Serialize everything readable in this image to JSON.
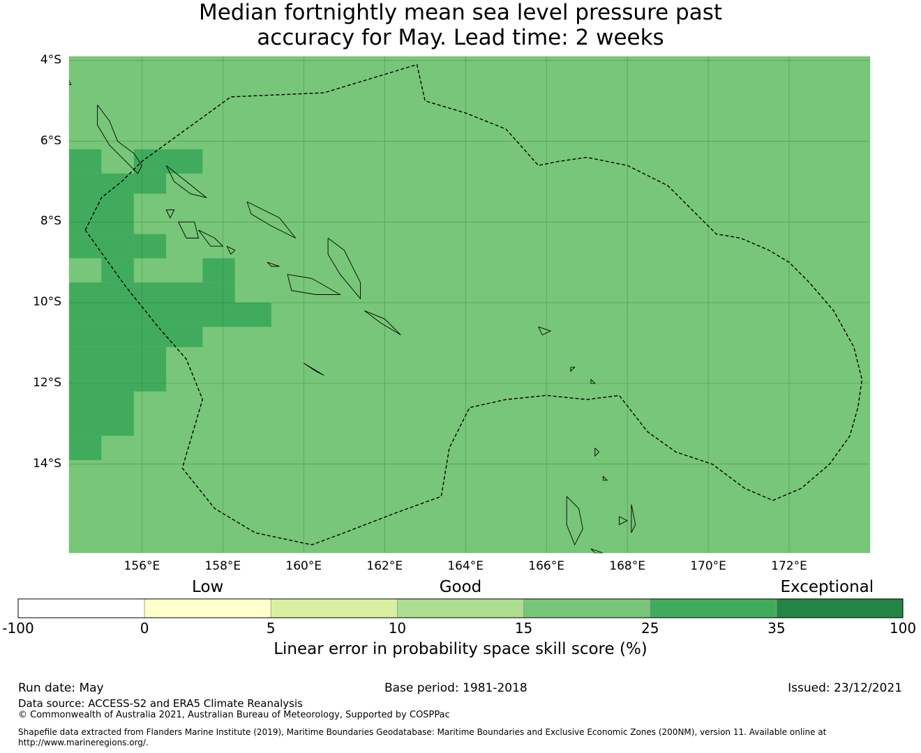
{
  "title_lines": [
    "Median fortnightly mean sea level pressure past",
    "accuracy for May. Lead time: 2 weeks"
  ],
  "map": {
    "lon_range": [
      154.2,
      174.0
    ],
    "lat_range": [
      -16.2,
      -3.9
    ],
    "lat_labels": [
      {
        "value": -4,
        "text": "4°S"
      },
      {
        "value": -6,
        "text": "6°S"
      },
      {
        "value": -8,
        "text": "8°S"
      },
      {
        "value": -10,
        "text": "10°S"
      },
      {
        "value": -12,
        "text": "12°S"
      },
      {
        "value": -14,
        "text": "14°S"
      }
    ],
    "lon_labels": [
      {
        "value": 156,
        "text": "156°E"
      },
      {
        "value": 158,
        "text": "158°E"
      },
      {
        "value": 160,
        "text": "160°E"
      },
      {
        "value": 162,
        "text": "162°E"
      },
      {
        "value": 164,
        "text": "164°E"
      },
      {
        "value": 166,
        "text": "166°E"
      },
      {
        "value": 168,
        "text": "168°E"
      },
      {
        "value": 170,
        "text": "170°E"
      },
      {
        "value": 172,
        "text": "172°E"
      }
    ],
    "background_category": "15-25",
    "high_skill_cells": [
      [
        154.2,
        155.0,
        -6.2,
        -6.8
      ],
      [
        155.8,
        157.5,
        -6.2,
        -6.8
      ],
      [
        154.2,
        155.8,
        -6.8,
        -8.3
      ],
      [
        155.8,
        156.6,
        -6.8,
        -7.3
      ],
      [
        154.2,
        155.8,
        -8.3,
        -8.9
      ],
      [
        155.8,
        156.6,
        -8.3,
        -8.9
      ],
      [
        155.0,
        155.8,
        -8.9,
        -9.5
      ],
      [
        157.5,
        158.3,
        -8.9,
        -9.5
      ],
      [
        154.2,
        158.3,
        -9.5,
        -10.0
      ],
      [
        154.2,
        159.2,
        -10.0,
        -10.6
      ],
      [
        154.2,
        157.5,
        -10.6,
        -11.1
      ],
      [
        154.2,
        156.6,
        -11.1,
        -12.2
      ],
      [
        154.2,
        155.8,
        -12.2,
        -13.3
      ],
      [
        154.2,
        155.0,
        -13.3,
        -13.9
      ]
    ],
    "eez_boundary": [
      [
        154.6,
        -8.2
      ],
      [
        155.0,
        -7.4
      ],
      [
        155.5,
        -7.0
      ],
      [
        156.0,
        -6.5
      ],
      [
        158.2,
        -4.9
      ],
      [
        160.5,
        -4.8
      ],
      [
        162.8,
        -4.1
      ],
      [
        163.0,
        -5.0
      ],
      [
        164.0,
        -5.3
      ],
      [
        165.0,
        -5.7
      ],
      [
        165.8,
        -6.6
      ],
      [
        166.3,
        -6.5
      ],
      [
        167.0,
        -6.4
      ],
      [
        168.0,
        -6.6
      ],
      [
        169.0,
        -7.1
      ],
      [
        170.2,
        -8.3
      ],
      [
        170.8,
        -8.4
      ],
      [
        171.5,
        -8.7
      ],
      [
        172.0,
        -9.0
      ],
      [
        172.5,
        -9.5
      ],
      [
        173.1,
        -10.2
      ],
      [
        173.6,
        -11.1
      ],
      [
        173.8,
        -11.9
      ],
      [
        173.7,
        -12.6
      ],
      [
        173.5,
        -13.3
      ],
      [
        173.0,
        -14.0
      ],
      [
        172.3,
        -14.6
      ],
      [
        171.6,
        -14.9
      ],
      [
        170.9,
        -14.6
      ],
      [
        170.1,
        -14.0
      ],
      [
        169.2,
        -13.7
      ],
      [
        168.5,
        -13.2
      ],
      [
        167.8,
        -12.3
      ],
      [
        167.0,
        -12.4
      ],
      [
        166.0,
        -12.3
      ],
      [
        165.0,
        -12.4
      ],
      [
        164.1,
        -12.6
      ],
      [
        163.6,
        -13.6
      ],
      [
        163.4,
        -14.8
      ],
      [
        162.3,
        -15.2
      ],
      [
        161.0,
        -15.7
      ],
      [
        160.2,
        -16.0
      ],
      [
        158.8,
        -15.7
      ],
      [
        157.8,
        -15.1
      ],
      [
        157.0,
        -14.1
      ],
      [
        157.5,
        -12.4
      ],
      [
        157.1,
        -11.4
      ],
      [
        156.4,
        -10.6
      ],
      [
        155.6,
        -9.6
      ],
      [
        154.6,
        -8.2
      ]
    ],
    "coastlines": [
      [
        [
          154.9,
          -5.1
        ],
        [
          155.2,
          -5.5
        ],
        [
          155.4,
          -6.0
        ],
        [
          155.8,
          -6.3
        ],
        [
          156.0,
          -6.6
        ],
        [
          155.9,
          -6.8
        ],
        [
          155.5,
          -6.4
        ],
        [
          155.2,
          -6.1
        ],
        [
          154.9,
          -5.6
        ],
        [
          154.9,
          -5.1
        ]
      ],
      [
        [
          156.6,
          -6.6
        ],
        [
          157.1,
          -7.0
        ],
        [
          157.6,
          -7.4
        ],
        [
          157.2,
          -7.3
        ],
        [
          156.8,
          -7.0
        ],
        [
          156.6,
          -6.6
        ]
      ],
      [
        [
          158.6,
          -7.5
        ],
        [
          159.4,
          -7.9
        ],
        [
          159.8,
          -8.4
        ],
        [
          159.2,
          -8.1
        ],
        [
          158.7,
          -7.8
        ],
        [
          158.6,
          -7.5
        ]
      ],
      [
        [
          160.6,
          -8.4
        ],
        [
          161.0,
          -8.7
        ],
        [
          161.4,
          -9.5
        ],
        [
          161.4,
          -9.9
        ],
        [
          160.9,
          -9.3
        ],
        [
          160.6,
          -8.8
        ],
        [
          160.6,
          -8.4
        ]
      ],
      [
        [
          159.6,
          -9.3
        ],
        [
          160.2,
          -9.4
        ],
        [
          160.9,
          -9.8
        ],
        [
          160.3,
          -9.8
        ],
        [
          159.7,
          -9.7
        ],
        [
          159.6,
          -9.3
        ]
      ],
      [
        [
          161.5,
          -10.2
        ],
        [
          162.0,
          -10.4
        ],
        [
          162.4,
          -10.8
        ],
        [
          161.9,
          -10.5
        ],
        [
          161.5,
          -10.2
        ]
      ],
      [
        [
          156.9,
          -8.0
        ],
        [
          157.3,
          -8.0
        ],
        [
          157.4,
          -8.4
        ],
        [
          157.1,
          -8.4
        ],
        [
          156.9,
          -8.0
        ]
      ],
      [
        [
          157.4,
          -8.2
        ],
        [
          157.8,
          -8.4
        ],
        [
          158.0,
          -8.6
        ],
        [
          157.7,
          -8.6
        ],
        [
          157.4,
          -8.2
        ]
      ],
      [
        [
          156.6,
          -7.7
        ],
        [
          156.8,
          -7.7
        ],
        [
          156.7,
          -7.9
        ],
        [
          156.6,
          -7.7
        ]
      ],
      [
        [
          158.1,
          -8.6
        ],
        [
          158.3,
          -8.7
        ],
        [
          158.2,
          -8.8
        ],
        [
          158.1,
          -8.6
        ]
      ],
      [
        [
          159.1,
          -9.0
        ],
        [
          159.4,
          -9.1
        ],
        [
          159.2,
          -9.1
        ],
        [
          159.1,
          -9.0
        ]
      ],
      [
        [
          160.0,
          -11.5
        ],
        [
          160.5,
          -11.8
        ],
        [
          160.3,
          -11.7
        ],
        [
          160.0,
          -11.5
        ]
      ],
      [
        [
          165.8,
          -10.6
        ],
        [
          166.1,
          -10.7
        ],
        [
          165.9,
          -10.8
        ],
        [
          165.8,
          -10.6
        ]
      ],
      [
        [
          166.6,
          -11.6
        ],
        [
          166.7,
          -11.6
        ],
        [
          166.6,
          -11.7
        ],
        [
          166.6,
          -11.6
        ]
      ],
      [
        [
          167.1,
          -11.9
        ],
        [
          167.2,
          -12.0
        ],
        [
          167.1,
          -12.0
        ],
        [
          167.1,
          -11.9
        ]
      ],
      [
        [
          166.5,
          -14.8
        ],
        [
          166.8,
          -15.1
        ],
        [
          166.9,
          -15.6
        ],
        [
          166.7,
          -16.0
        ],
        [
          166.5,
          -15.5
        ],
        [
          166.5,
          -14.8
        ]
      ],
      [
        [
          167.8,
          -15.3
        ],
        [
          168.0,
          -15.4
        ],
        [
          167.8,
          -15.5
        ],
        [
          167.8,
          -15.3
        ]
      ],
      [
        [
          168.1,
          -15.0
        ],
        [
          168.2,
          -15.5
        ],
        [
          168.1,
          -15.7
        ],
        [
          168.1,
          -15.0
        ]
      ],
      [
        [
          167.2,
          -13.6
        ],
        [
          167.3,
          -13.7
        ],
        [
          167.2,
          -13.8
        ],
        [
          167.2,
          -13.6
        ]
      ],
      [
        [
          167.4,
          -14.3
        ],
        [
          167.5,
          -14.4
        ],
        [
          167.4,
          -14.4
        ],
        [
          167.4,
          -14.3
        ]
      ],
      [
        [
          167.1,
          -16.1
        ],
        [
          167.4,
          -16.2
        ],
        [
          167.2,
          -16.2
        ],
        [
          167.1,
          -16.1
        ]
      ],
      [
        [
          154.2,
          -4.5
        ],
        [
          154.25,
          -4.6
        ],
        [
          154.2,
          -4.6
        ]
      ]
    ]
  },
  "colorbar": {
    "category_labels": [
      {
        "text": "Low",
        "at": 1.5
      },
      {
        "text": "Good",
        "at": 3.5
      },
      {
        "text": "Exceptional",
        "at": 6.4
      }
    ],
    "segments": [
      {
        "from": "-100",
        "to": "0",
        "color": "#ffffff"
      },
      {
        "from": "0",
        "to": "5",
        "color": "#ffffcc"
      },
      {
        "from": "5",
        "to": "10",
        "color": "#d9f0a3"
      },
      {
        "from": "10",
        "to": "15",
        "color": "#addd8e"
      },
      {
        "from": "15",
        "to": "25",
        "color": "#78c679"
      },
      {
        "from": "25",
        "to": "35",
        "color": "#41ab5d"
      },
      {
        "from": "35",
        "to": "100",
        "color": "#238443"
      }
    ],
    "tick_labels": [
      "-100",
      "0",
      "5",
      "10",
      "15",
      "25",
      "35",
      "100"
    ],
    "title": "Linear error in probability space skill score (%)"
  },
  "footer": {
    "run_date": "Run date: May",
    "base_period": "Base period: 1981-2018",
    "issued": "Issued: 23/12/2021",
    "data_source": "Data source: ACCESS-S2 and ERA5 Climate Reanalysis",
    "copyright": "© Commonwealth of Australia 2021, Australian Bureau of Meteorology, Supported by COSPPac",
    "shapefile_note": "Shapefile data extracted from Flanders Marine Institute (2019), Maritime Boundaries Geodatabase: Maritime Boundaries and Exclusive Economic Zones (200NM), version 11. Available online at http://www.marineregions.org/."
  }
}
